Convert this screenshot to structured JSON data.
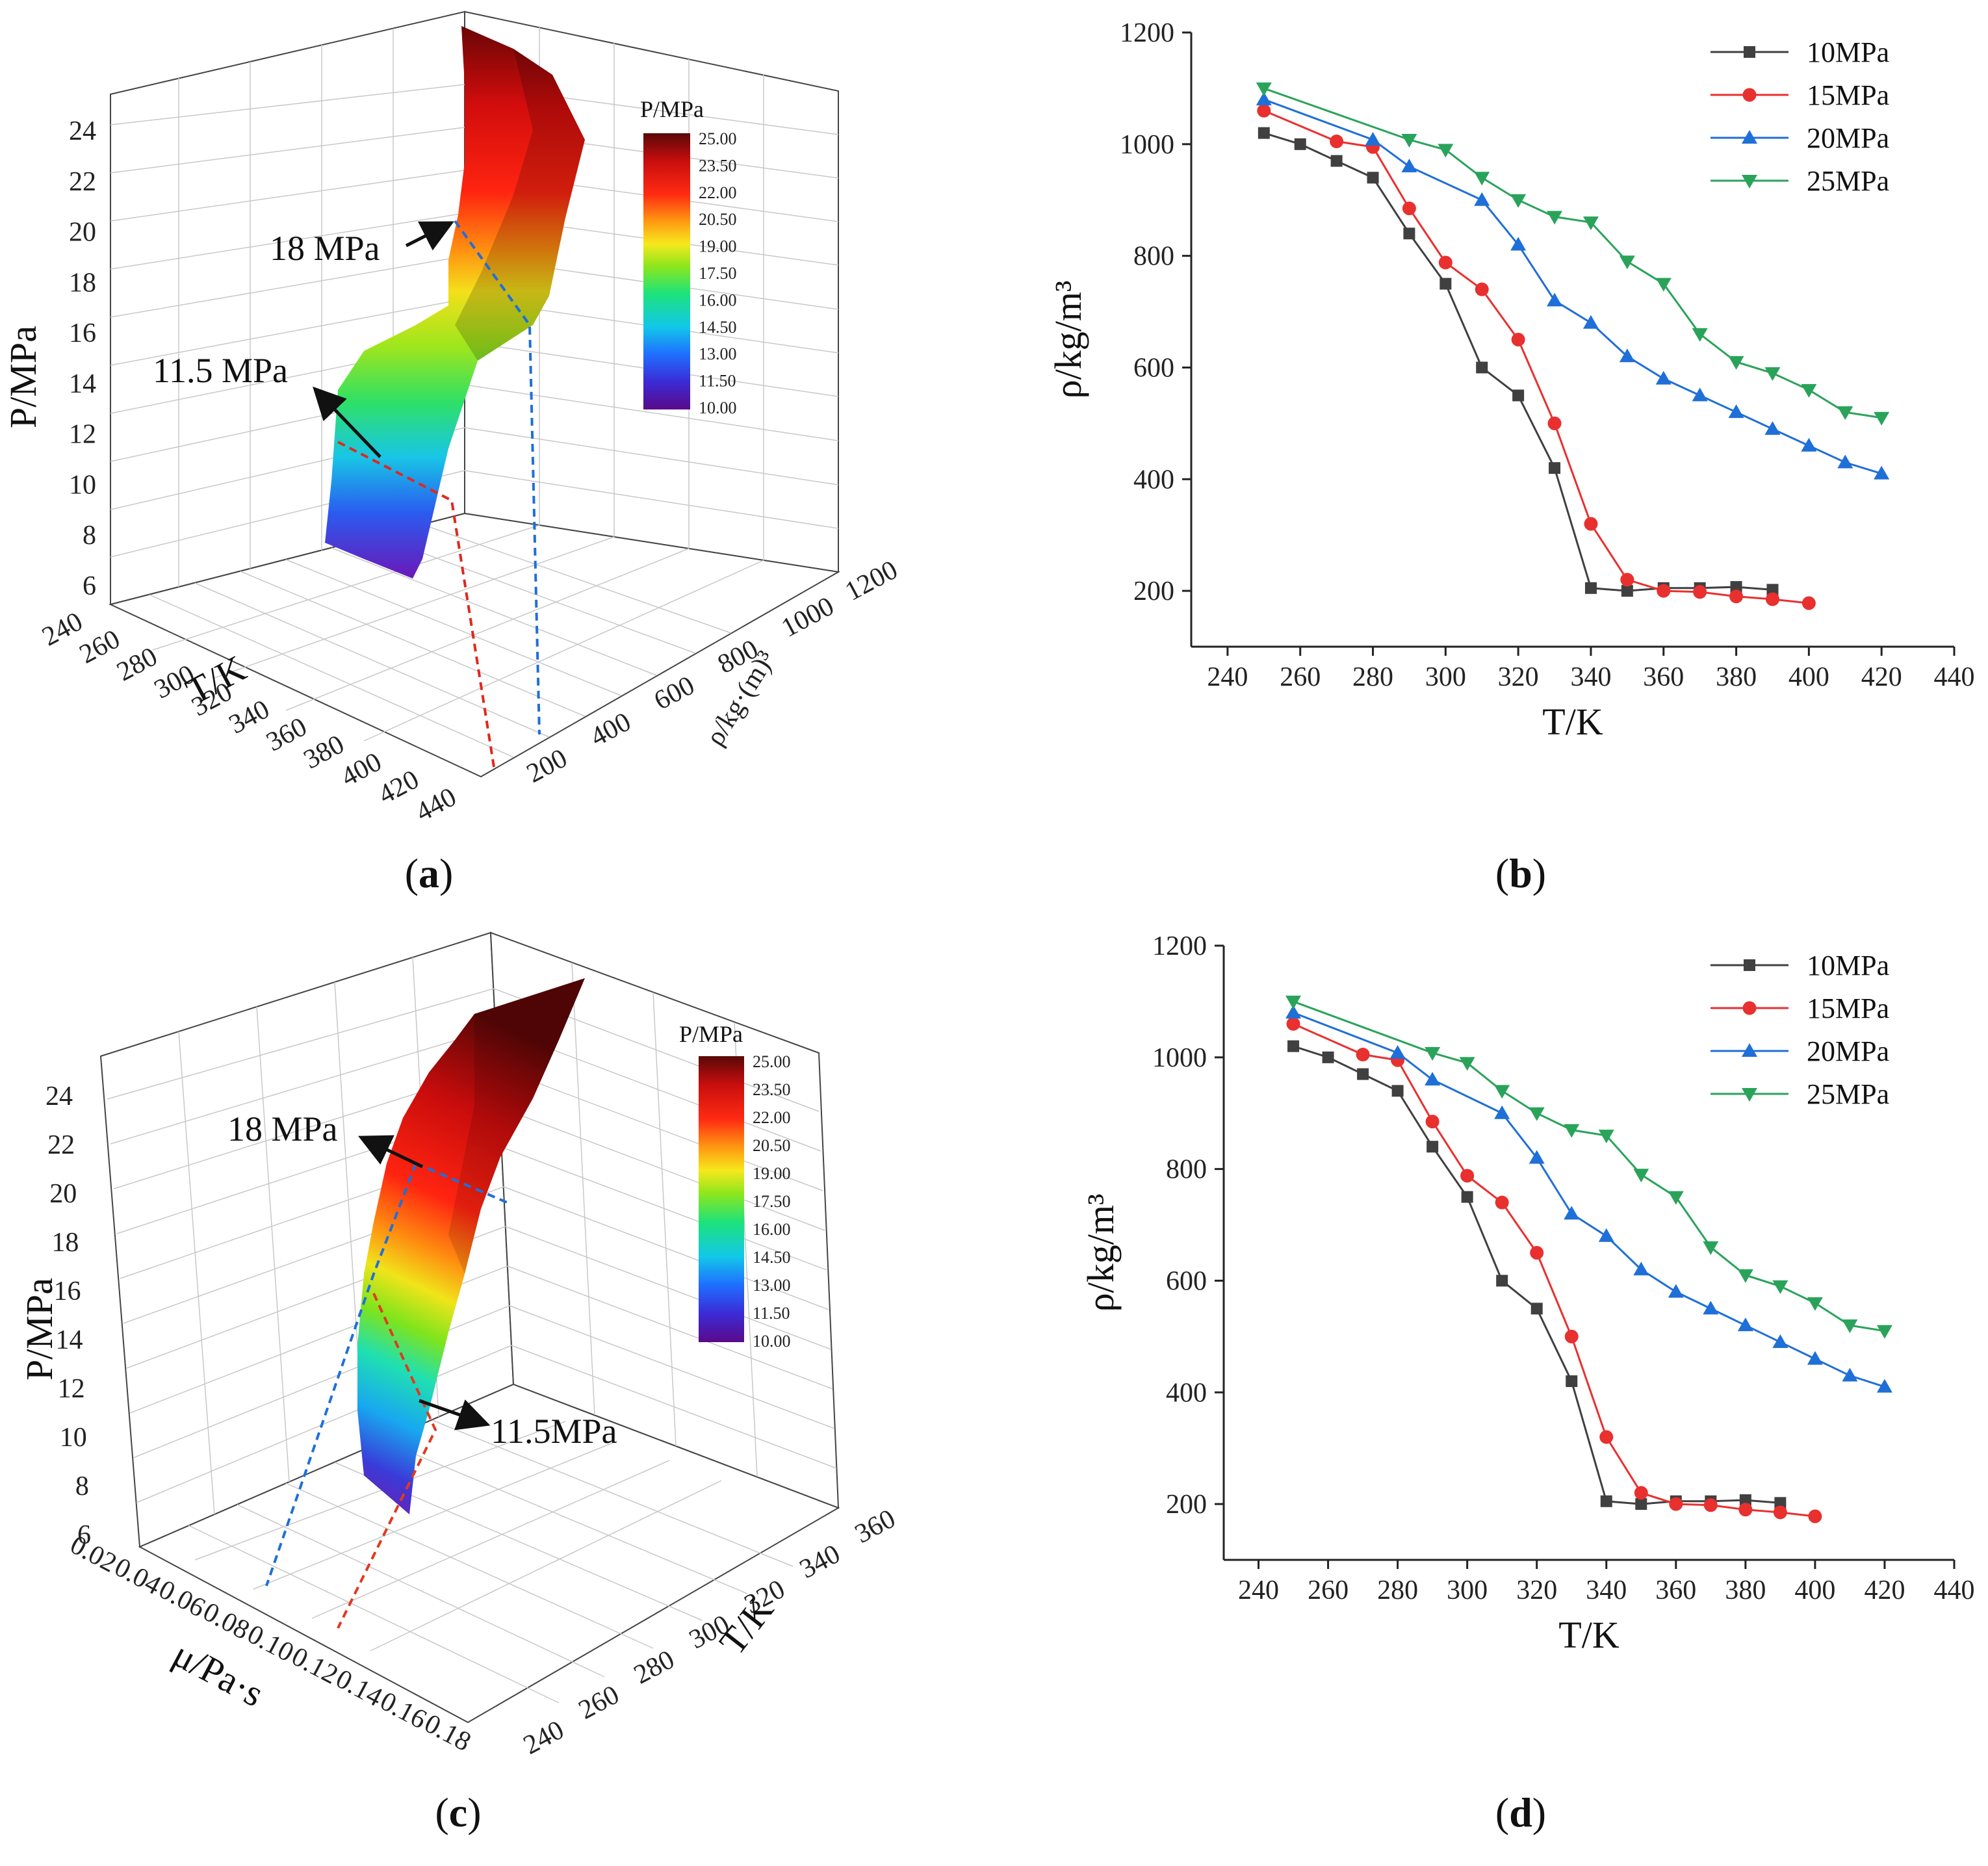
{
  "captions": {
    "a": "(a)",
    "b": "(b)",
    "c": "(c)",
    "d": "(d)"
  },
  "colors": {
    "s10": "#404040",
    "s15": "#e8302f",
    "s20": "#1f6fd8",
    "s25": "#2aa35a"
  },
  "chart_data": [
    {
      "id": "a",
      "type": "surface3d",
      "zlabel": "P/MPa",
      "xlabel": "T/K",
      "ylabel": "ρ/kg·(m)³",
      "zticks": [
        "6",
        "8",
        "10",
        "12",
        "14",
        "16",
        "18",
        "20",
        "22",
        "24"
      ],
      "xticks": [
        "240",
        "260",
        "280",
        "300",
        "320",
        "340",
        "360",
        "380",
        "400",
        "420",
        "440"
      ],
      "yticks": [
        "200",
        "400",
        "600",
        "800",
        "1000",
        "1200"
      ],
      "colorbar": {
        "title": "P/MPa",
        "ticks": [
          "25.00",
          "23.50",
          "22.00",
          "20.50",
          "19.00",
          "17.50",
          "16.00",
          "14.50",
          "13.00",
          "11.50",
          "10.00"
        ]
      },
      "annotations": [
        "18 MPa",
        "11.5 MPa"
      ]
    },
    {
      "id": "b",
      "type": "line",
      "xlabel": "T/K",
      "ylabel": "ρ/kg/m³",
      "xlim": [
        230,
        440
      ],
      "ylim": [
        100,
        1200
      ],
      "xticks": [
        "240",
        "260",
        "280",
        "300",
        "320",
        "340",
        "360",
        "380",
        "400",
        "420",
        "440"
      ],
      "yticks": [
        "200",
        "400",
        "600",
        "800",
        "1000",
        "1200"
      ],
      "series": [
        {
          "name": "10MPa",
          "x": [
            250,
            260,
            270,
            280,
            290,
            300,
            310,
            320,
            330,
            340,
            350,
            360,
            370,
            380,
            390
          ],
          "values": [
            1020,
            1000,
            970,
            940,
            840,
            750,
            600,
            550,
            420,
            205,
            200,
            205,
            205,
            207,
            202
          ]
        },
        {
          "name": "15MPa",
          "x": [
            250,
            270,
            280,
            290,
            300,
            310,
            320,
            330,
            340,
            350,
            360,
            370,
            380,
            390,
            400
          ],
          "values": [
            1060,
            1005,
            995,
            885,
            788,
            740,
            650,
            500,
            320,
            220,
            200,
            198,
            190,
            185,
            178
          ]
        },
        {
          "name": "20MPa",
          "x": [
            250,
            280,
            290,
            310,
            320,
            330,
            340,
            350,
            360,
            370,
            380,
            390,
            400,
            410,
            420
          ],
          "values": [
            1080,
            1008,
            960,
            900,
            820,
            720,
            680,
            620,
            580,
            550,
            520,
            490,
            460,
            430,
            410
          ]
        },
        {
          "name": "25MPa",
          "x": [
            250,
            290,
            300,
            310,
            320,
            330,
            340,
            350,
            360,
            370,
            380,
            390,
            400,
            410,
            420
          ],
          "values": [
            1100,
            1008,
            990,
            940,
            900,
            870,
            860,
            790,
            750,
            660,
            610,
            590,
            560,
            520,
            510
          ]
        }
      ]
    },
    {
      "id": "c",
      "type": "surface3d",
      "zlabel": "P/MPa",
      "xlabel": "μ/Pa·s",
      "ylabel": "T/K",
      "zticks": [
        "6",
        "8",
        "10",
        "12",
        "14",
        "16",
        "18",
        "20",
        "22",
        "24"
      ],
      "xticks": [
        "0.02",
        "0.04",
        "0.06",
        "0.08",
        "0.10",
        "0.12",
        "0.14",
        "0.16",
        "0.18"
      ],
      "yticks": [
        "240",
        "260",
        "280",
        "300",
        "320",
        "340",
        "360"
      ],
      "colorbar": {
        "title": "P/MPa",
        "ticks": [
          "25.00",
          "23.50",
          "22.00",
          "20.50",
          "19.00",
          "17.50",
          "16.00",
          "14.50",
          "13.00",
          "11.50",
          "10.00"
        ]
      },
      "annotations": [
        "18 MPa",
        "11.5MPa"
      ]
    },
    {
      "id": "d",
      "type": "line",
      "xlabel": "T/K",
      "ylabel": "ρ/kg/m³",
      "xlim": [
        230,
        440
      ],
      "ylim": [
        100,
        1200
      ],
      "xticks": [
        "240",
        "260",
        "280",
        "300",
        "320",
        "340",
        "360",
        "380",
        "400",
        "420",
        "440"
      ],
      "yticks": [
        "200",
        "400",
        "600",
        "800",
        "1000",
        "1200"
      ],
      "series": [
        {
          "name": "10MPa",
          "x": [
            250,
            260,
            270,
            280,
            290,
            300,
            310,
            320,
            330,
            340,
            350,
            360,
            370,
            380,
            390
          ],
          "values": [
            1020,
            1000,
            970,
            940,
            840,
            750,
            600,
            550,
            420,
            205,
            200,
            205,
            205,
            207,
            202
          ]
        },
        {
          "name": "15MPa",
          "x": [
            250,
            270,
            280,
            290,
            300,
            310,
            320,
            330,
            340,
            350,
            360,
            370,
            380,
            390,
            400
          ],
          "values": [
            1060,
            1005,
            995,
            885,
            788,
            740,
            650,
            500,
            320,
            220,
            200,
            198,
            190,
            185,
            178
          ]
        },
        {
          "name": "20MPa",
          "x": [
            250,
            280,
            290,
            310,
            320,
            330,
            340,
            350,
            360,
            370,
            380,
            390,
            400,
            410,
            420
          ],
          "values": [
            1080,
            1008,
            960,
            900,
            820,
            720,
            680,
            620,
            580,
            550,
            520,
            490,
            460,
            430,
            410
          ]
        },
        {
          "name": "25MPa",
          "x": [
            250,
            290,
            300,
            310,
            320,
            330,
            340,
            350,
            360,
            370,
            380,
            390,
            400,
            410,
            420
          ],
          "values": [
            1100,
            1008,
            990,
            940,
            900,
            870,
            860,
            790,
            750,
            660,
            610,
            590,
            560,
            520,
            510
          ]
        }
      ]
    }
  ]
}
